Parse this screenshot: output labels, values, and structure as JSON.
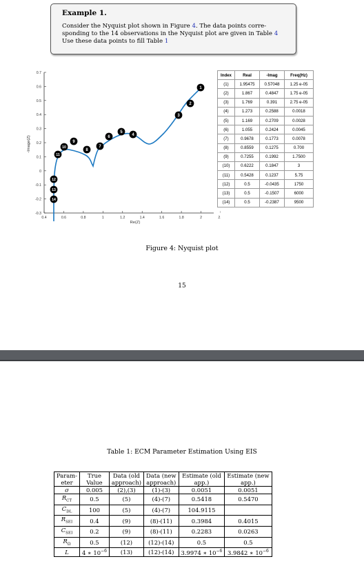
{
  "example": {
    "title": "Example 1.",
    "line1_pre": "Consider the Nyquist plot shown in Figure ",
    "line1_ref": "4",
    "line1_post": ". The data points corre-",
    "line2_pre": "sponding to the 14 observations in the Nyquist plot are given in Table ",
    "line2_ref": "4",
    "line3_pre": "Use these data points to fill Table ",
    "line3_ref": "1"
  },
  "chart_data": {
    "type": "line",
    "xlabel": "Re(Z)",
    "ylabel": "-Image(Z)",
    "xlim": [
      0.4,
      2.2
    ],
    "ylim": [
      -0.3,
      0.7
    ],
    "xticks": [
      "0.4",
      "0.6",
      "0.8",
      "1",
      "1.2",
      "1.4",
      "1.6",
      "1.8",
      "2",
      "2.2"
    ],
    "yticks": [
      "-0.3",
      "-0.2",
      "-0.1",
      "0",
      "0.1",
      "0.2",
      "0.3",
      "0.4",
      "0.5",
      "0.6",
      "0.7"
    ],
    "grid": false,
    "series": [
      {
        "points": [
          {
            "label": "1",
            "x": 1.95475,
            "y": 0.57048
          },
          {
            "label": "2",
            "x": 1.867,
            "y": 0.4847
          },
          {
            "label": "3",
            "x": 1.769,
            "y": 0.391
          },
          {
            "label": "4",
            "x": 1.273,
            "y": 0.2588
          },
          {
            "label": "5",
            "x": 1.169,
            "y": 0.2709
          },
          {
            "label": "6",
            "x": 1.055,
            "y": 0.2424
          },
          {
            "label": "7",
            "x": 0.9678,
            "y": 0.1773
          },
          {
            "label": "8",
            "x": 0.8559,
            "y": 0.1275
          },
          {
            "label": "9",
            "x": 0.7255,
            "y": 0.1992
          },
          {
            "label": "10",
            "x": 0.6222,
            "y": 0.1847
          },
          {
            "label": "11",
            "x": 0.5428,
            "y": 0.1237
          },
          {
            "label": "12",
            "x": 0.5,
            "y": -0.0435
          },
          {
            "label": "13",
            "x": 0.5,
            "y": -0.1507
          },
          {
            "label": "14",
            "x": 0.5,
            "y": -0.2387
          }
        ]
      }
    ]
  },
  "figure_caption": "Figure 4: Nyquist plot",
  "page_number": "15",
  "data_table": {
    "headers": [
      "Index",
      "Real",
      "-Imag",
      "Freq(Hz)"
    ],
    "rows": [
      [
        "(1)",
        "1.95475",
        "0.57048",
        "1.25 e-05"
      ],
      [
        "(2)",
        "1.867",
        "0.4847",
        "1.75 e-05"
      ],
      [
        "(3)",
        "1.769",
        "0.391",
        "2.75 e-05"
      ],
      [
        "(4)",
        "1.273",
        "0.2588",
        "0.0018"
      ],
      [
        "(5)",
        "1.169",
        "0.2709",
        "0.0028"
      ],
      [
        "(6)",
        "1.055",
        "0.2424",
        "0.0045"
      ],
      [
        "(7)",
        "0.9678",
        "0.1773",
        "0.0078"
      ],
      [
        "(8)",
        "0.8559",
        "0.1275",
        "0.700"
      ],
      [
        "(9)",
        "0.7255",
        "0.1992",
        "1.7500"
      ],
      [
        "(10)",
        "0.6222",
        "0.1847",
        "3"
      ],
      [
        "(11)",
        "0.5428",
        "0.1237",
        "5.75"
      ],
      [
        "(12)",
        "0.5",
        "-0.0435",
        "1750"
      ],
      [
        "(13)",
        "0.5",
        "-0.1507",
        "6000"
      ],
      [
        "(14)",
        "0.5",
        "-0.2387",
        "9500"
      ]
    ]
  },
  "ecm_table": {
    "caption": "Table 1: ECM Parameter Estimation Using EIS",
    "headers": [
      [
        "Param-",
        "eter"
      ],
      [
        "True",
        "Value"
      ],
      [
        "Data (old",
        "approach)"
      ],
      [
        "Data (new",
        "approach)"
      ],
      [
        "Estimate (old",
        "app.)"
      ],
      [
        "Estimate (new",
        "app.)"
      ]
    ],
    "rows": [
      {
        "param": "σ",
        "sub": "",
        "true": "0.005",
        "old": "(2),(3)",
        "new": "(1)-(3)",
        "est_old": "0.0051",
        "est_new": "0.0051"
      },
      {
        "param": "R",
        "sub": "CT",
        "true": "0.5",
        "old": "(5)",
        "new": "(4)-(7)",
        "est_old": "0.5418",
        "est_new": "0.5470"
      },
      {
        "param": "C",
        "sub": "DL",
        "true": "100",
        "old": "(5)",
        "new": "(4)-(7)",
        "est_old": "104.9115",
        "est_new": ""
      },
      {
        "param": "R",
        "sub": "SEI",
        "true": "0.4",
        "old": "(9)",
        "new": "(8)-(11)",
        "est_old": "0.3984",
        "est_new": "0.4015"
      },
      {
        "param": "C",
        "sub": "SEI",
        "true": "0.2",
        "old": "(9)",
        "new": "(8)-(11)",
        "est_old": "0.2283",
        "est_new": "0.0263"
      },
      {
        "param": "R",
        "sub": "Ω",
        "true": "0.5",
        "old": "(12)",
        "new": "(12)-(14)",
        "est_old": "0.5",
        "est_new": "0.5"
      },
      {
        "param": "L",
        "sub": "",
        "true": "4 ∗ 10",
        "true_exp": "−6",
        "old": "(13)",
        "new": "(12)-(14)",
        "est_old": "3.9974 ∗ 10",
        "est_old_exp": "−6",
        "est_new": "3.9842 ∗ 10",
        "est_new_exp": "−6"
      }
    ]
  }
}
